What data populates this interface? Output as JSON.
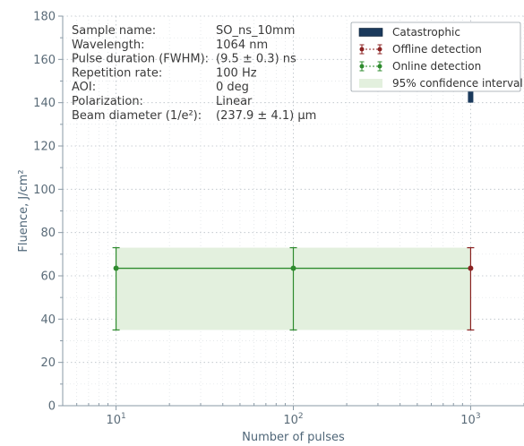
{
  "chart_data": {
    "type": "scatter",
    "xlabel": "Number of pulses",
    "ylabel": "Fluence, J/cm²",
    "xscale": "log",
    "xlim": [
      5,
      2000
    ],
    "ylim": [
      0,
      180
    ],
    "y_ticks": [
      0,
      20,
      40,
      60,
      80,
      100,
      120,
      140,
      160,
      180
    ],
    "x_ticks": [
      {
        "value": 10,
        "base": "10",
        "exp": "1"
      },
      {
        "value": 100,
        "base": "10",
        "exp": "2"
      },
      {
        "value": 1000,
        "base": "10",
        "exp": "3"
      }
    ],
    "grid": true,
    "legend_position": "top-right",
    "info": [
      {
        "key": "Sample name:",
        "value": "SO_ns_10mm"
      },
      {
        "key": "Wavelength:",
        "value": "1064 nm"
      },
      {
        "key": "Pulse duration (FWHM):",
        "value": "(9.5 ± 0.3) ns"
      },
      {
        "key": "Repetition rate:",
        "value": "100 Hz"
      },
      {
        "key": "AOI:",
        "value": "0 deg"
      },
      {
        "key": "Polarization:",
        "value": "Linear"
      },
      {
        "key": "Beam diameter (1/e²):",
        "value": "(237.9 ± 4.1) µm"
      }
    ],
    "legend": [
      {
        "label": "Catastrophic",
        "kind": "box",
        "color": "#1b3a5c"
      },
      {
        "label": "Offline detection",
        "kind": "errorbar",
        "color": "#8b2323"
      },
      {
        "label": "Online detection",
        "kind": "errorbar",
        "color": "#2e8b2e"
      },
      {
        "label": "95% confidence interval",
        "kind": "band",
        "color": "#e3f0de"
      }
    ],
    "series": [
      {
        "name": "Online detection",
        "color": "#2e8b2e",
        "x": [
          10,
          100
        ],
        "y": [
          63.5,
          63.5
        ],
        "err_low": [
          35,
          35
        ],
        "err_high": [
          73,
          73
        ]
      },
      {
        "name": "Offline detection",
        "color": "#8b2323",
        "x": [
          1000
        ],
        "y": [
          63.5
        ],
        "err_low": [
          35
        ],
        "err_high": [
          73
        ]
      }
    ],
    "line": {
      "x": [
        10,
        1000
      ],
      "y": [
        63.5,
        63.5
      ],
      "color": "#2e8b2e"
    },
    "confidence_band": {
      "x": [
        10,
        1000
      ],
      "y_low": 35,
      "y_high": 73,
      "color": "#e3f0de"
    },
    "arrow": {
      "x": 1000,
      "y_base": 140,
      "y_tip": 152,
      "color": "#1b3a5c"
    }
  }
}
